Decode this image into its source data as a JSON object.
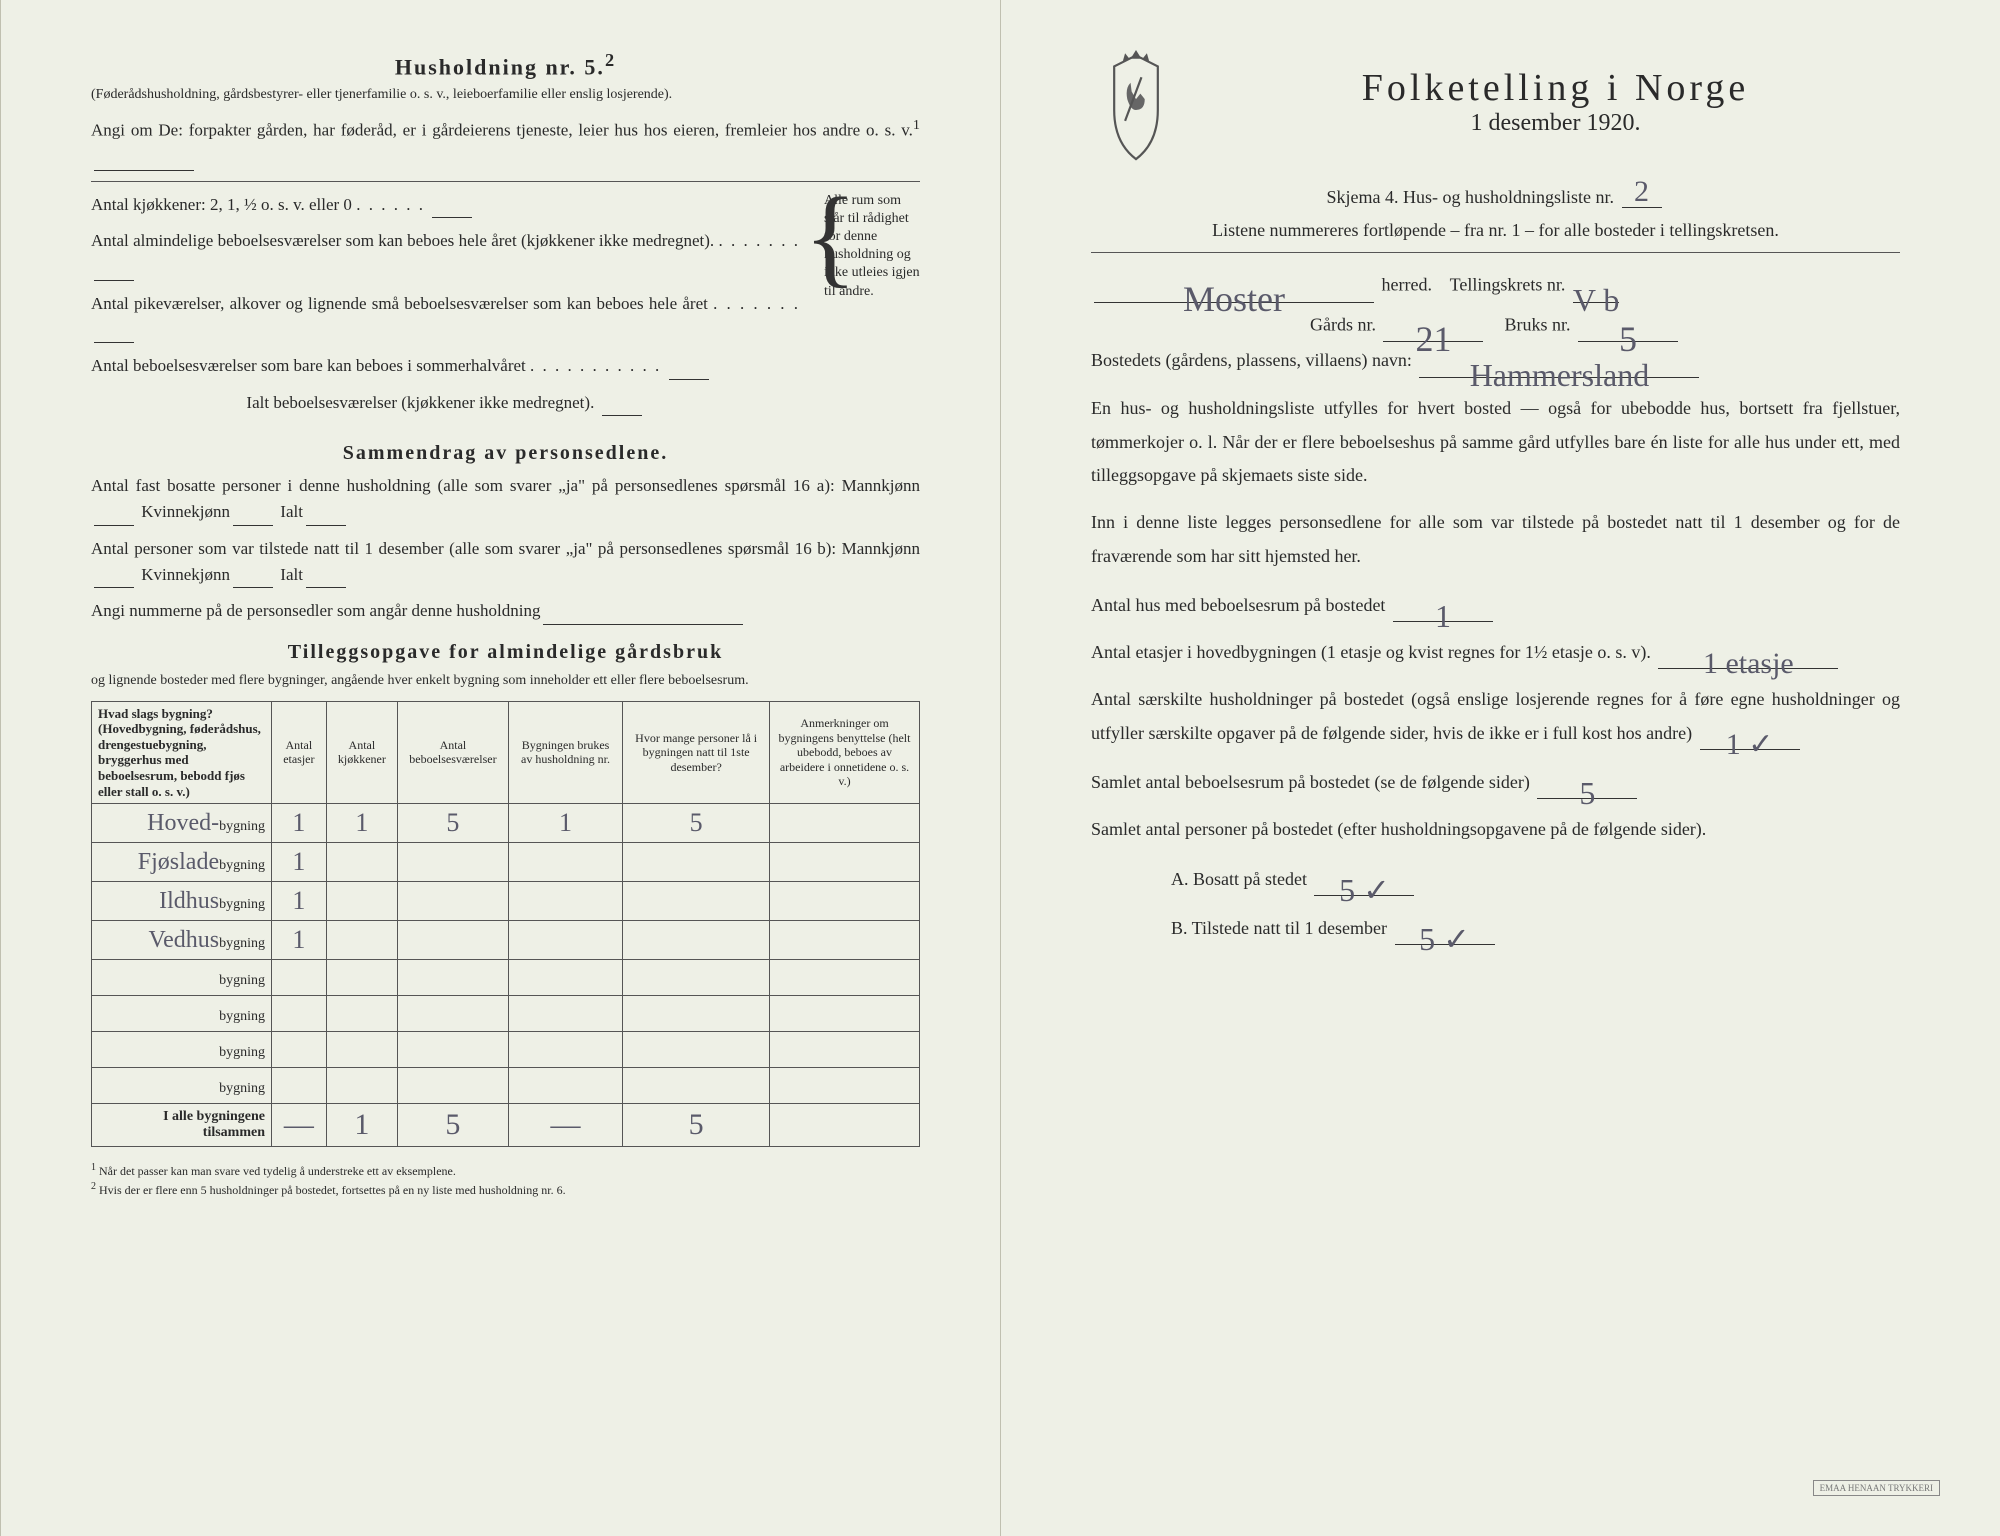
{
  "left": {
    "title": "Husholdning nr. 5.",
    "title_sup": "2",
    "intro": "(Føderådshusholdning, gårdsbestyrer- eller tjenerfamilie o. s. v., leieboerfamilie eller enslig losjerende).",
    "angi": "Angi om De: forpakter gården, har føderåd, er i gårdeierens tjeneste, leier hus hos eieren, fremleier hos andre o. s. v.",
    "sup1": "1",
    "kitchens_label": "Antal kjøkkener: 2, 1, ½ o. s. v. eller 0",
    "rooms": {
      "a": "Antal almindelige beboelsesværelser som kan beboes hele året (kjøkkener ikke medregnet).",
      "b": "Antal pikeværelser, alkover og lignende små beboelsesværelser som kan beboes hele året",
      "c": "Antal beboelsesværelser som bare kan beboes i sommerhalvåret",
      "total": "Ialt beboelsesværelser (kjøkkener ikke medregnet)."
    },
    "brace_text": "Alle rum som står til rådighet for denne husholdning og ikke utleies igjen til andre.",
    "sammendrag_title": "Sammendrag av personsedlene.",
    "fast_bosatte": "Antal fast bosatte personer i denne husholdning (alle som svarer „ja\" på personsedlenes spørsmål 16 a): Mannkjønn",
    "kvinne": "Kvinnekjønn",
    "ialt": "Ialt",
    "tilstede": "Antal personer som var tilstede natt til 1 desember (alle som svarer „ja\" på personsedlenes spørsmål 16 b): Mannkjønn",
    "nummerne": "Angi nummerne på de personsedler som angår denne husholdning",
    "tillegg_title": "Tilleggsopgave for almindelige gårdsbruk",
    "tillegg_sub": "og lignende bosteder med flere bygninger, angående hver enkelt bygning som inneholder ett eller flere beboelsesrum.",
    "table": {
      "headers": [
        "Hvad slags bygning?\n(Hovedbygning, føderådshus, drengestuebygning, bryggerhus med beboelsesrum, bebodd fjøs eller stall o. s. v.)",
        "Antal etasjer",
        "Antal kjøkkener",
        "Antal beboelsesværelser",
        "Bygningen brukes av husholdning nr.",
        "Hvor mange personer lå i bygningen natt til 1ste desember?",
        "Anmerkninger om bygningens benyttelse (helt ubebodd, beboes av arbeidere i onnetidene o. s. v.)"
      ],
      "rows": [
        {
          "label_hw": "Hoved-",
          "suffix": "bygning",
          "cells": [
            "1",
            "1",
            "5",
            "1",
            "5",
            ""
          ]
        },
        {
          "label_hw": "Fjøslade",
          "suffix": "bygning",
          "cells": [
            "1",
            "",
            "",
            "",
            "",
            ""
          ]
        },
        {
          "label_hw": "Ildhus",
          "suffix": "bygning",
          "cells": [
            "1",
            "",
            "",
            "",
            "",
            ""
          ]
        },
        {
          "label_hw": "Vedhus",
          "suffix": "bygning",
          "cells": [
            "1",
            "",
            "",
            "",
            "",
            ""
          ]
        },
        {
          "label_hw": "",
          "suffix": "bygning",
          "cells": [
            "",
            "",
            "",
            "",
            "",
            ""
          ]
        },
        {
          "label_hw": "",
          "suffix": "bygning",
          "cells": [
            "",
            "",
            "",
            "",
            "",
            ""
          ]
        },
        {
          "label_hw": "",
          "suffix": "bygning",
          "cells": [
            "",
            "",
            "",
            "",
            "",
            ""
          ]
        },
        {
          "label_hw": "",
          "suffix": "bygning",
          "cells": [
            "",
            "",
            "",
            "",
            "",
            ""
          ]
        }
      ],
      "total_label": "I alle bygningene tilsammen",
      "total_cells": [
        "—",
        "1",
        "5",
        "—",
        "5",
        ""
      ]
    },
    "footnote1": "Når det passer kan man svare ved tydelig å understreke ett av eksemplene.",
    "footnote2": "Hvis der er flere enn 5 husholdninger på bostedet, fortsettes på en ny liste med husholdning nr. 6."
  },
  "right": {
    "headline": "Folketelling i Norge",
    "date": "1 desember 1920.",
    "skjema": "Skjema 4.   Hus- og husholdningsliste nr.",
    "liste_nr": "2",
    "listenote": "Listene nummereres fortløpende – fra nr. 1 – for alle bosteder i tellingskretsen.",
    "herred_value": "Moster",
    "herred_label": "herred.",
    "tellingskrets_label": "Tellingskrets nr.",
    "krets_nr": "V b",
    "gards_label": "Gårds nr.",
    "gards_nr": "21",
    "bruks_label": "Bruks nr.",
    "bruks_nr": "5",
    "bosted_label": "Bostedets (gårdens, plassens, villaens) navn:",
    "bosted_value": "Hammersland",
    "para1": "En hus- og husholdningsliste utfylles for hvert bosted — også for ubebodde hus, bortsett fra fjellstuer, tømmerkojer o. l.  Når der er flere beboelseshus på samme gård utfylles bare én liste for alle hus under ett, med tilleggsopgave på skjemaets siste side.",
    "para2": "Inn i denne liste legges personsedlene for alle som var tilstede på bostedet natt til 1 desember og for de fraværende som har sitt hjemsted her.",
    "q_hus_label": "Antal hus med beboelsesrum på bostedet",
    "q_hus_val": "1",
    "q_etasje_label_a": "Antal etasjer i hovedbygningen (1 etasje og kvist regnes for 1½ etasje o. s. v).",
    "q_etasje_val": "1 etasje",
    "q_hush_label": "Antal særskilte husholdninger på bostedet (også enslige losjerende regnes for å føre egne husholdninger og utfyller særskilte opgaver på de følgende sider, hvis de ikke er i full kost hos andre)",
    "q_hush_val": "1 ✓",
    "q_rum_label": "Samlet antal beboelsesrum på bostedet (se de følgende sider)",
    "q_rum_val": "5",
    "q_pers_label": "Samlet antal personer på bostedet (efter husholdningsopgavene på de følgende sider).",
    "q_a_label": "A.  Bosatt på stedet",
    "q_a_val": "5 ✓",
    "q_b_label": "B.  Tilstede natt til 1 desember",
    "q_b_val": "5 ✓",
    "stamp": "EMAA HENAAN TRYKKERI"
  },
  "colors": {
    "paper": "#eef0e6",
    "ink": "#2a2a2a",
    "handwriting": "#5a5a6a",
    "rule": "#555555"
  }
}
